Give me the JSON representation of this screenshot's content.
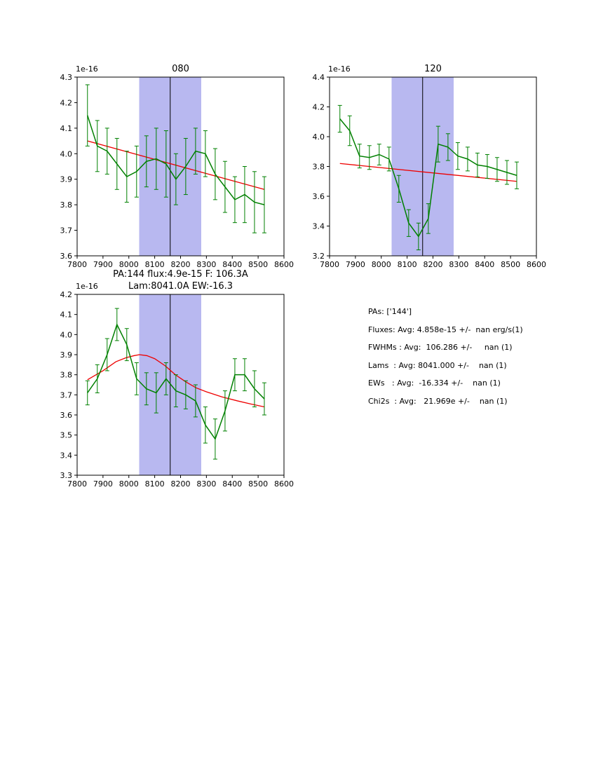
{
  "colors": {
    "data": "#008000",
    "fit": "#ee0000",
    "band": "#b8b8f0",
    "vline": "#000000",
    "axis": "#000000",
    "background": "#ffffff"
  },
  "stats_panel": {
    "lines": [
      "PAs: ['144']",
      "Fluxes: Avg: 4.858e-15 +/-  nan erg/s(1)",
      "FWHMs : Avg:  106.286 +/-     nan (1)",
      "Lams  : Avg: 8041.000 +/-    nan (1)",
      "EWs   : Avg:  -16.334 +/-    nan (1)",
      "Chi2s  : Avg:   21.969e +/-    nan (1)"
    ]
  },
  "chart_data": [
    {
      "type": "line",
      "title": "080",
      "offset_label": "1e-16",
      "xlim": [
        7800,
        8600
      ],
      "ylim": [
        3.6,
        4.3
      ],
      "xticks": [
        7800,
        7900,
        8000,
        8100,
        8200,
        8300,
        8400,
        8500,
        8600
      ],
      "yticks": [
        3.6,
        3.7,
        3.8,
        3.9,
        4.0,
        4.1,
        4.2,
        4.3
      ],
      "band": [
        8040,
        8280
      ],
      "vline": 8160,
      "x": [
        7840,
        7878,
        7916,
        7954,
        7992,
        8030,
        8068,
        8106,
        8144,
        8182,
        8220,
        8258,
        8296,
        8334,
        8372,
        8410,
        8448,
        8486,
        8524
      ],
      "y": [
        4.15,
        4.03,
        4.01,
        3.96,
        3.91,
        3.93,
        3.97,
        3.98,
        3.96,
        3.9,
        3.95,
        4.01,
        4.0,
        3.92,
        3.87,
        3.82,
        3.84,
        3.81,
        3.8
      ],
      "yerr": [
        0.12,
        0.1,
        0.09,
        0.1,
        0.1,
        0.1,
        0.1,
        0.12,
        0.13,
        0.1,
        0.11,
        0.09,
        0.09,
        0.1,
        0.1,
        0.09,
        0.11,
        0.12,
        0.11
      ],
      "fit": {
        "x": [
          7840,
          8524
        ],
        "y": [
          4.05,
          3.86
        ]
      }
    },
    {
      "type": "line",
      "title": "120",
      "offset_label": "1e-16",
      "xlim": [
        7800,
        8600
      ],
      "ylim": [
        3.2,
        4.4
      ],
      "xticks": [
        7800,
        7900,
        8000,
        8100,
        8200,
        8300,
        8400,
        8500,
        8600
      ],
      "yticks": [
        3.2,
        3.4,
        3.6,
        3.8,
        4.0,
        4.2,
        4.4
      ],
      "band": [
        8040,
        8280
      ],
      "vline": 8160,
      "x": [
        7840,
        7878,
        7916,
        7954,
        7992,
        8030,
        8068,
        8106,
        8144,
        8182,
        8220,
        8258,
        8296,
        8334,
        8372,
        8410,
        8448,
        8486,
        8524
      ],
      "y": [
        4.12,
        4.04,
        3.87,
        3.86,
        3.88,
        3.85,
        3.65,
        3.42,
        3.33,
        3.45,
        3.95,
        3.93,
        3.87,
        3.85,
        3.81,
        3.8,
        3.78,
        3.76,
        3.74
      ],
      "yerr": [
        0.09,
        0.1,
        0.08,
        0.08,
        0.07,
        0.08,
        0.09,
        0.09,
        0.09,
        0.1,
        0.12,
        0.09,
        0.09,
        0.08,
        0.08,
        0.08,
        0.08,
        0.08,
        0.09
      ],
      "fit": {
        "x": [
          7840,
          8524
        ],
        "y": [
          3.82,
          3.7
        ]
      }
    },
    {
      "type": "line",
      "title": "PA:144 flux:4.9e-15 F: 106.3A",
      "title2": "Lam:8041.0A EW:-16.3",
      "offset_label": "1e-16",
      "xlim": [
        7800,
        8600
      ],
      "ylim": [
        3.3,
        4.2
      ],
      "xticks": [
        7800,
        7900,
        8000,
        8100,
        8200,
        8300,
        8400,
        8500,
        8600
      ],
      "yticks": [
        3.3,
        3.4,
        3.5,
        3.6,
        3.7,
        3.8,
        3.9,
        4.0,
        4.1,
        4.2
      ],
      "band": [
        8040,
        8280
      ],
      "vline": 8160,
      "x": [
        7840,
        7878,
        7916,
        7954,
        7992,
        8030,
        8068,
        8106,
        8144,
        8182,
        8220,
        8258,
        8296,
        8334,
        8372,
        8410,
        8448,
        8486,
        8524
      ],
      "y": [
        3.71,
        3.78,
        3.9,
        4.05,
        3.95,
        3.78,
        3.73,
        3.71,
        3.78,
        3.72,
        3.7,
        3.67,
        3.55,
        3.48,
        3.62,
        3.8,
        3.8,
        3.73,
        3.68
      ],
      "yerr": [
        0.06,
        0.07,
        0.08,
        0.08,
        0.08,
        0.08,
        0.08,
        0.1,
        0.08,
        0.08,
        0.07,
        0.08,
        0.09,
        0.1,
        0.1,
        0.08,
        0.08,
        0.09,
        0.08
      ],
      "fit": {
        "x": [
          7840,
          7900,
          7950,
          7990,
          8020,
          8041,
          8070,
          8100,
          8140,
          8180,
          8220,
          8260,
          8300,
          8360,
          8420,
          8470,
          8524
        ],
        "y": [
          3.775,
          3.82,
          3.865,
          3.885,
          3.895,
          3.9,
          3.895,
          3.88,
          3.845,
          3.8,
          3.765,
          3.735,
          3.715,
          3.69,
          3.67,
          3.655,
          3.64
        ]
      }
    }
  ]
}
